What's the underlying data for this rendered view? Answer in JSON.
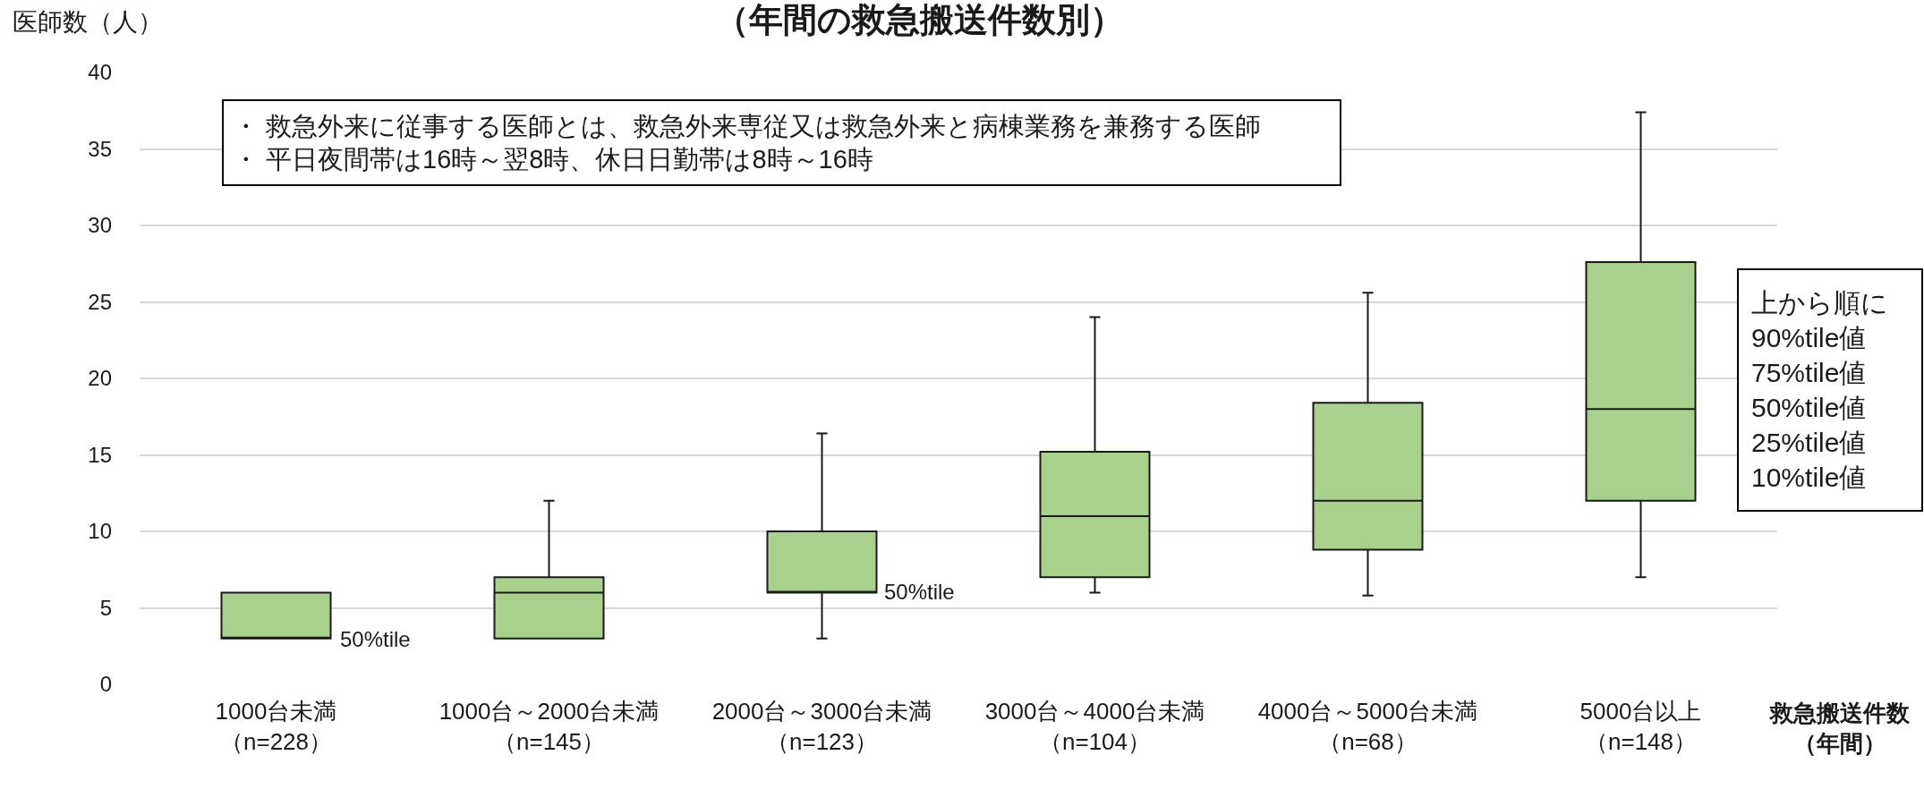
{
  "chart_data": {
    "type": "box",
    "title": "（年間の救急搬送件数別）",
    "ylabel": "医師数（人）",
    "xlabel": "救急搬送件数（年間）",
    "categories": [
      "1000台未満（n=228）",
      "1000台～2000台未満（n=145）",
      "2000台～3000台未満（n=123）",
      "3000台～4000台未満（n=104）",
      "4000台～5000台未満（n=68）",
      "5000台以上（n=148）"
    ],
    "series": [
      {
        "color": "#a9d18e",
        "boxes": [
          {
            "low": 3,
            "q1": 3,
            "median": 3,
            "q3": 6,
            "high": 6
          },
          {
            "low": 3,
            "q1": 3,
            "median": 6,
            "q3": 7,
            "high": 12
          },
          {
            "low": 3,
            "q1": 6,
            "median": 6,
            "q3": 10,
            "high": 16.4
          },
          {
            "low": 6,
            "q1": 7,
            "median": 11,
            "q3": 15.2,
            "high": 24
          },
          {
            "low": 5.8,
            "q1": 8.8,
            "median": 12,
            "q3": 18.4,
            "high": 25.6
          },
          {
            "low": 7,
            "q1": 12,
            "median": 18,
            "q3": 27.6,
            "high": 37.4
          }
        ]
      }
    ],
    "ylim": [
      0,
      40
    ],
    "yticks": [
      0,
      5,
      10,
      15,
      20,
      25,
      30,
      35,
      40
    ],
    "grid": "y",
    "annotations": [
      "・ 救急外来に従事する医師とは、救急外来専従又は救急外来と病棟業務を兼務する医師・ 平日夜間帯は16時～翌8時、休日日勤帯は8時～16時",
      "上から順に\n90%tile値\n75%tile値\n50%tile値\n25%tile値\n10%tile値",
      "50%tile",
      "50%tile"
    ]
  }
}
